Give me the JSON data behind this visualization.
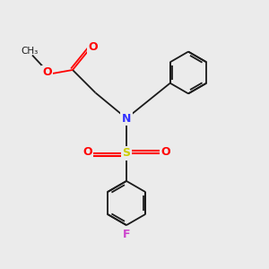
{
  "bg_color": "#ebebeb",
  "bond_color": "#1a1a1a",
  "N_color": "#3333ff",
  "O_color": "#ff0000",
  "S_color": "#cccc00",
  "F_color": "#cc44cc",
  "lw": 1.3,
  "figsize": [
    3.0,
    3.0
  ],
  "dpi": 100,
  "xlim": [
    0,
    10
  ],
  "ylim": [
    0,
    10
  ]
}
